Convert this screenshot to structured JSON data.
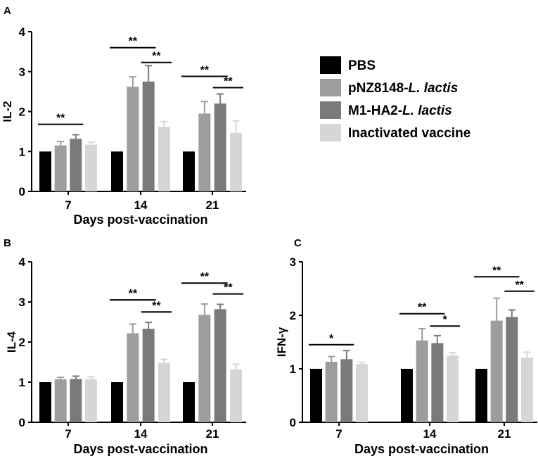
{
  "colors": {
    "PBS": "#000000",
    "pNZ8148-L. lactis": "#9d9da0",
    "M1-HA2-L. lactis": "#7a7a7c",
    "Inactivated vaccine": "#d6d6d6"
  },
  "legend": {
    "items": [
      {
        "name": "PBS",
        "plain": "PBS",
        "italic": ""
      },
      {
        "name": "pNZ8148-L. lactis",
        "plain": "pNZ8148-",
        "italic": "L. lactis"
      },
      {
        "name": "M1-HA2-L. lactis",
        "plain": "M1-HA2-",
        "italic": "L. lactis"
      },
      {
        "name": "Inactivated vaccine",
        "plain": "Inactivated vaccine",
        "italic": ""
      }
    ]
  },
  "chart_data": [
    {
      "panel_label": "A",
      "type": "bar",
      "ylabel": "IL-2",
      "xlabel": "Days post-vaccination",
      "categories": [
        "7",
        "14",
        "21"
      ],
      "ylim": [
        0,
        4
      ],
      "yticks": [
        0,
        1,
        2,
        3,
        4
      ],
      "series": [
        {
          "name": "PBS",
          "values": [
            1.0,
            1.0,
            1.0
          ],
          "errors": [
            0,
            0,
            0
          ]
        },
        {
          "name": "pNZ8148-L. lactis",
          "values": [
            1.15,
            2.62,
            1.95
          ],
          "errors": [
            0.1,
            0.25,
            0.3
          ]
        },
        {
          "name": "M1-HA2-L. lactis",
          "values": [
            1.32,
            2.75,
            2.2
          ],
          "errors": [
            0.1,
            0.4,
            0.24
          ]
        },
        {
          "name": "Inactivated vaccine",
          "values": [
            1.17,
            1.62,
            1.47
          ],
          "errors": [
            0.06,
            0.13,
            0.3
          ]
        }
      ],
      "annotations": [
        {
          "text": "**",
          "category": "7",
          "from": 0,
          "to": 2,
          "y": 1.68
        },
        {
          "text": "**",
          "category": "14",
          "from": 0,
          "to": 2,
          "y": 3.6
        },
        {
          "text": "**",
          "category": "14",
          "from": 2,
          "to": 3,
          "y": 3.23
        },
        {
          "text": "**",
          "category": "21",
          "from": 0,
          "to": 2,
          "y": 2.88
        },
        {
          "text": "**",
          "category": "21",
          "from": 2,
          "to": 3,
          "y": 2.6
        }
      ]
    },
    {
      "panel_label": "B",
      "type": "bar",
      "ylabel": "IL-4",
      "xlabel": "Days post-vaccination",
      "categories": [
        "7",
        "14",
        "21"
      ],
      "ylim": [
        0,
        4
      ],
      "yticks": [
        0,
        1,
        2,
        3,
        4
      ],
      "series": [
        {
          "name": "PBS",
          "values": [
            1.0,
            1.0,
            1.0
          ],
          "errors": [
            0,
            0,
            0
          ]
        },
        {
          "name": "pNZ8148-L. lactis",
          "values": [
            1.07,
            2.22,
            2.68
          ],
          "errors": [
            0.05,
            0.23,
            0.27
          ]
        },
        {
          "name": "M1-HA2-L. lactis",
          "values": [
            1.08,
            2.33,
            2.82
          ],
          "errors": [
            0.07,
            0.16,
            0.12
          ]
        },
        {
          "name": "Inactivated vaccine",
          "values": [
            1.07,
            1.48,
            1.32
          ],
          "errors": [
            0.06,
            0.09,
            0.13
          ]
        }
      ],
      "annotations": [
        {
          "text": "**",
          "category": "14",
          "from": 0,
          "to": 2,
          "y": 3.05
        },
        {
          "text": "**",
          "category": "14",
          "from": 2,
          "to": 3,
          "y": 2.75
        },
        {
          "text": "**",
          "category": "21",
          "from": 0,
          "to": 2,
          "y": 3.47
        },
        {
          "text": "**",
          "category": "21",
          "from": 2,
          "to": 3,
          "y": 3.2
        }
      ]
    },
    {
      "panel_label": "C",
      "type": "bar",
      "ylabel": "IFN-γ",
      "xlabel": "Days post-vaccination",
      "categories": [
        "7",
        "14",
        "21"
      ],
      "ylim": [
        0,
        3
      ],
      "yticks": [
        0,
        1,
        2,
        3
      ],
      "series": [
        {
          "name": "PBS",
          "values": [
            1.0,
            1.0,
            1.0
          ],
          "errors": [
            0,
            0,
            0
          ]
        },
        {
          "name": "pNZ8148-L. lactis",
          "values": [
            1.13,
            1.53,
            1.9
          ],
          "errors": [
            0.1,
            0.22,
            0.42
          ]
        },
        {
          "name": "M1-HA2-L. lactis",
          "values": [
            1.18,
            1.48,
            1.97
          ],
          "errors": [
            0.16,
            0.14,
            0.13
          ]
        },
        {
          "name": "Inactivated vaccine",
          "values": [
            1.09,
            1.25,
            1.21
          ],
          "errors": [
            0.03,
            0.05,
            0.1
          ]
        }
      ],
      "annotations": [
        {
          "text": "*",
          "category": "7",
          "from": 0,
          "to": 2,
          "y": 1.45
        },
        {
          "text": "**",
          "category": "14",
          "from": 0,
          "to": 2,
          "y": 2.03
        },
        {
          "text": "*",
          "category": "14",
          "from": 2,
          "to": 3,
          "y": 1.8
        },
        {
          "text": "**",
          "category": "21",
          "from": 0,
          "to": 2,
          "y": 2.72
        },
        {
          "text": "**",
          "category": "21",
          "from": 2,
          "to": 3,
          "y": 2.45
        }
      ]
    }
  ]
}
